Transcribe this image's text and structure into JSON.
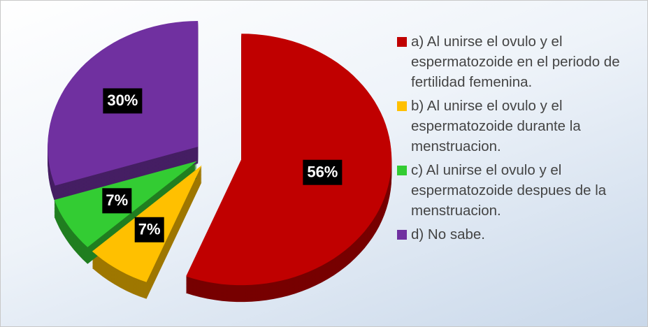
{
  "chart_data": {
    "type": "pie",
    "categories": [
      "a) Al unirse el ovulo y el espermatozoide en el periodo de fertilidad femenina.",
      "b) Al unirse el ovulo y el espermatozoide durante la menstruacion.",
      "c) Al unirse el ovulo y el espermatozoide despues de la menstruacion.",
      "d) No sabe."
    ],
    "values": [
      56,
      7,
      7,
      30
    ],
    "value_labels": [
      "56%",
      "7%",
      "7%",
      "30%"
    ],
    "colors": [
      "#c00000",
      "#ffc000",
      "#33cc33",
      "#7030a0"
    ],
    "legend": "right"
  }
}
